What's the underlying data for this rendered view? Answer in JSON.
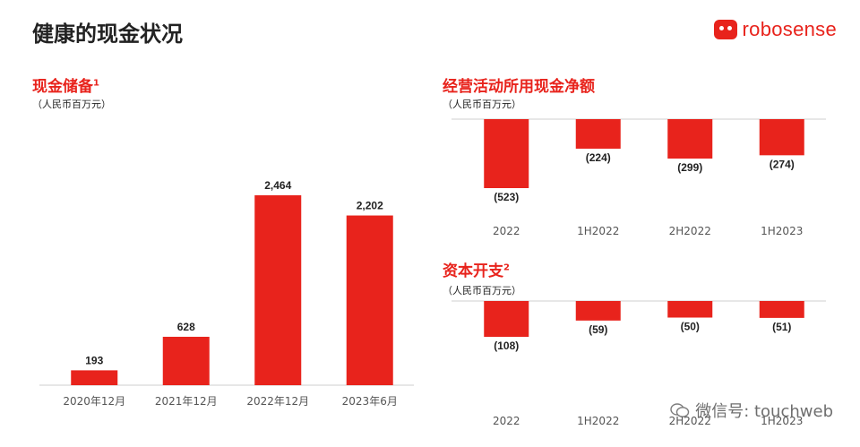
{
  "page": {
    "title": "健康的现金状况",
    "logo_text": "robosense",
    "watermark": "微信号: touchweb",
    "accent": "#e8231c"
  },
  "chart_data": [
    {
      "id": "cash",
      "type": "bar",
      "title": "现金储备",
      "title_sup": "1",
      "unit_label": "（人民币百万元）",
      "categories": [
        "2020年12月",
        "2021年12月",
        "2022年12月",
        "2023年6月"
      ],
      "values": [
        193,
        628,
        2464,
        2202
      ],
      "value_labels": [
        "193",
        "628",
        "2,464",
        "2,202"
      ],
      "ylim": [
        0,
        2700
      ],
      "grid": false
    },
    {
      "id": "opcash",
      "type": "bar",
      "title": "经营活动所用现金净额",
      "title_sup": "",
      "unit_label": "（人民币百万元）",
      "categories": [
        "2022",
        "1H2022",
        "2H2022",
        "1H2023"
      ],
      "values": [
        -523,
        -224,
        -299,
        -274
      ],
      "value_labels": [
        "(523)",
        "(224)",
        "(299)",
        "(274)"
      ],
      "ylim": [
        -600,
        0
      ],
      "grid": false
    },
    {
      "id": "capex",
      "type": "bar",
      "title": "资本开支",
      "title_sup": "2",
      "unit_label": "（人民币百万元）",
      "categories": [
        "2022",
        "1H2022",
        "2H2022",
        "1H2023"
      ],
      "values": [
        -108,
        -59,
        -50,
        -51
      ],
      "value_labels": [
        "(108)",
        "(59)",
        "(50)",
        "(51)"
      ],
      "ylim": [
        -200,
        0
      ],
      "grid": false
    }
  ]
}
